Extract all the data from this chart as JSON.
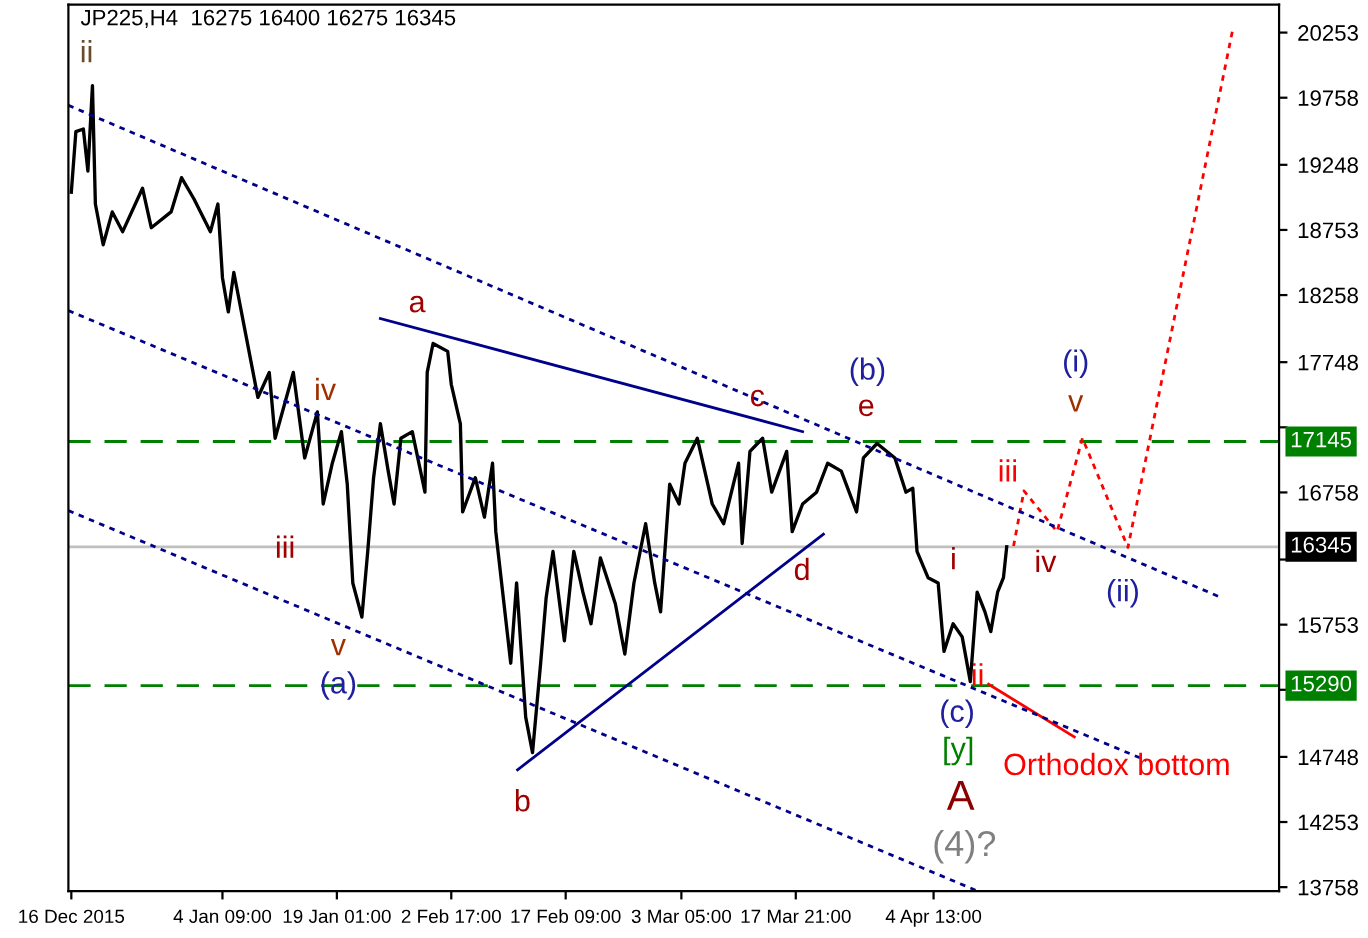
{
  "chart_data": {
    "type": "line",
    "title": "JP225,H4  16275 16400 16275 16345",
    "xlim": [
      "2015-12-15T15:00",
      "2016-05-18T20:00"
    ],
    "xticks": [
      {
        "value": "2015-12-16T00:00",
        "label": "16 Dec 2015"
      },
      {
        "value": "2016-01-04T09:00",
        "label": "4 Jan 09:00"
      },
      {
        "value": "2016-01-19T01:00",
        "label": "19 Jan 01:00"
      },
      {
        "value": "2016-02-02T17:00",
        "label": "2 Feb 17:00"
      },
      {
        "value": "2016-02-17T09:00",
        "label": "17 Feb 09:00"
      },
      {
        "value": "2016-03-03T05:00",
        "label": "3 Mar 05:00"
      },
      {
        "value": "2016-03-17T21:00",
        "label": "17 Mar 21:00"
      },
      {
        "value": "2016-04-04T13:00",
        "label": "4 Apr 13:00"
      }
    ],
    "ylim": [
      13728,
      20465
    ],
    "yticks": [
      13758,
      14253,
      14748,
      {
        "value": 15258,
        "label": null
      },
      15753,
      {
        "value": 16248,
        "label": null
      },
      16758,
      {
        "value": 17253,
        "label": null
      },
      17748,
      18258,
      18753,
      19248,
      19758,
      20253
    ],
    "grid": false,
    "legend": false,
    "series": [
      {
        "color": "#000000",
        "line_style": "solid",
        "x": [
          "2015-12-16T00:00",
          "2015-12-16T14:00",
          "2015-12-17T13:00",
          "2015-12-18T03:00",
          "2015-12-18T17:00",
          "2015-12-19T02:00",
          "2015-12-20T02:00",
          "2015-12-21T06:00",
          "2015-12-22T14:00",
          "2015-12-25T03:00",
          "2015-12-26T06:00",
          "2015-12-28T19:00",
          "2015-12-30T03:00",
          "2015-12-31T17:00",
          "2016-01-02T20:00",
          "2016-01-03T19:00",
          "2016-01-04T09:00",
          "2016-01-05T03:00",
          "2016-01-05T20:00",
          "2016-01-07T07:00",
          "2016-01-08T22:00",
          "2016-01-10T09:00",
          "2016-01-11T03:00",
          "2016-01-13T11:00",
          "2016-01-14T22:00",
          "2016-01-16T13:00",
          "2016-01-17T07:00",
          "2016-01-18T11:00",
          "2016-01-19T15:00",
          "2016-01-20T09:00",
          "2016-01-21T02:00",
          "2016-01-22T06:00",
          "2016-01-23T00:00",
          "2016-01-23T18:00",
          "2016-01-24T15:00",
          "2016-01-25T15:00",
          "2016-01-26T09:00",
          "2016-01-27T06:00",
          "2016-01-28T17:00",
          "2016-01-30T08:00",
          "2016-01-30T15:00",
          "2016-01-31T09:00",
          "2016-02-02T06:00",
          "2016-02-02T17:00",
          "2016-02-03T21:00",
          "2016-02-04T04:00",
          "2016-02-05T19:00",
          "2016-02-06T23:00",
          "2016-02-08T00:00",
          "2016-02-08T10:00",
          "2016-02-10T08:00",
          "2016-02-11T02:00",
          "2016-02-12T06:00",
          "2016-02-13T03:00",
          "2016-02-14T04:00",
          "2016-02-14T21:00",
          "2016-02-15T18:00",
          "2016-02-17T05:00",
          "2016-02-18T10:00",
          "2016-02-19T14:00",
          "2016-02-20T15:00",
          "2016-02-21T20:00",
          "2016-02-23T18:00",
          "2016-02-24T23:00",
          "2016-02-26T03:00",
          "2016-02-27T15:00",
          "2016-02-28T19:00",
          "2016-02-29T13:00",
          "2016-03-01T17:00",
          "2016-03-02T22:00",
          "2016-03-03T16:00",
          "2016-03-05T06:00",
          "2016-03-06T17:00",
          "2016-03-07T04:00",
          "2016-03-08T15:00",
          "2016-03-10T13:00",
          "2016-03-11T00:00",
          "2016-03-12T00:00",
          "2016-03-13T15:00",
          "2016-03-14T19:00",
          "2016-03-16T17:00",
          "2016-03-17T10:00",
          "2016-03-18T18:00",
          "2016-03-20T13:00",
          "2016-03-21T23:00",
          "2016-03-23T17:00",
          "2016-03-25T16:00",
          "2016-03-26T13:00",
          "2016-03-28T07:00",
          "2016-03-30T14:00",
          "2016-04-01T00:00",
          "2016-04-01T21:00",
          "2016-04-02T10:00",
          "2016-04-03T20:00",
          "2016-04-05T03:00",
          "2016-04-05T21:00",
          "2016-04-07T01:00",
          "2016-04-08T05:00",
          "2016-04-09T06:00",
          "2016-04-10T03:00",
          "2016-04-11T03:00",
          "2016-04-11T21:00",
          "2016-04-12T18:00",
          "2016-04-13T12:00",
          "2016-04-13T22:00"
        ],
        "values": [
          19040,
          19500,
          19520,
          19200,
          19850,
          18950,
          18640,
          18890,
          18740,
          19070,
          18770,
          18890,
          19150,
          18990,
          18740,
          18950,
          18390,
          18130,
          18430,
          17980,
          17480,
          17670,
          17170,
          17670,
          17020,
          17370,
          16670,
          16980,
          17220,
          16820,
          16070,
          15810,
          16310,
          16870,
          17280,
          16920,
          16670,
          17170,
          17220,
          16760,
          17670,
          17890,
          17830,
          17580,
          17280,
          16610,
          16870,
          16570,
          16980,
          16460,
          15460,
          16070,
          15050,
          14780,
          15460,
          15960,
          16310,
          15630,
          16310,
          16000,
          15760,
          16260,
          15910,
          15530,
          16070,
          16520,
          16070,
          15850,
          16820,
          16670,
          16980,
          17170,
          16790,
          16670,
          16520,
          16980,
          16370,
          17070,
          17170,
          16760,
          17070,
          16460,
          16670,
          16760,
          16980,
          16920,
          16610,
          17020,
          17130,
          17020,
          16760,
          16790,
          16310,
          16110,
          16070,
          15550,
          15760,
          15660,
          15320,
          16000,
          15850,
          15700,
          16000,
          16110,
          16345
        ]
      },
      {
        "color": "#ff0000",
        "line_style": "dotted",
        "x": [
          "2016-04-14T19:00",
          "2016-04-16T03:00",
          "2016-04-20T09:00",
          "2016-04-23T15:00",
          "2016-04-29T11:00",
          "2016-05-12T20:00"
        ],
        "values": [
          16350,
          16770,
          16460,
          17170,
          16340,
          20260
        ]
      },
      {
        "color": "#ff0000",
        "line_style": "solid",
        "x": [
          "2016-04-11T14:00",
          "2016-04-22T14:00"
        ],
        "values": [
          15300,
          14900
        ]
      },
      {
        "color": "#00008b",
        "line_style": "dotted",
        "x": [
          "2015-12-15T15:00",
          "2016-05-11T09:00"
        ],
        "values": [
          19700,
          15960
        ]
      },
      {
        "color": "#00008b",
        "line_style": "dotted",
        "x": [
          "2015-12-15T15:00",
          "2016-05-01T20:00"
        ],
        "values": [
          18140,
          14720
        ]
      },
      {
        "color": "#00008b",
        "line_style": "dotted",
        "x": [
          "2015-12-15T15:00",
          "2016-04-10T03:00"
        ],
        "values": [
          16620,
          13730
        ]
      },
      {
        "color": "#00008b",
        "line_style": "solid",
        "x": [
          "2016-01-24T15:00",
          "2016-03-18T18:00"
        ],
        "values": [
          18080,
          17220
        ]
      },
      {
        "color": "#00008b",
        "line_style": "solid",
        "x": [
          "2016-02-11T05:00",
          "2016-03-21T10:00"
        ],
        "values": [
          14650,
          16440
        ]
      }
    ],
    "ref_lines": [
      {
        "axis": "y",
        "value": 17145,
        "label": "17145",
        "color": "#008000",
        "line_style": "dashed"
      },
      {
        "axis": "y",
        "value": 16345,
        "label": "16345",
        "color": "#c0c0c0",
        "line_style": "solid"
      },
      {
        "axis": "y",
        "value": 15290,
        "label": "15290",
        "color": "#008000",
        "line_style": "dashed"
      }
    ],
    "annotations": [
      "ii",
      "a",
      "iv",
      "iii",
      "v",
      "(a)",
      "b",
      "c",
      "d",
      "(b)",
      "e",
      "i",
      "ii",
      "(c)",
      "[y]",
      "A",
      "(4)?",
      "iii",
      "iv",
      "v",
      "(i)",
      "(ii)",
      "Orthodox bottom"
    ]
  }
}
